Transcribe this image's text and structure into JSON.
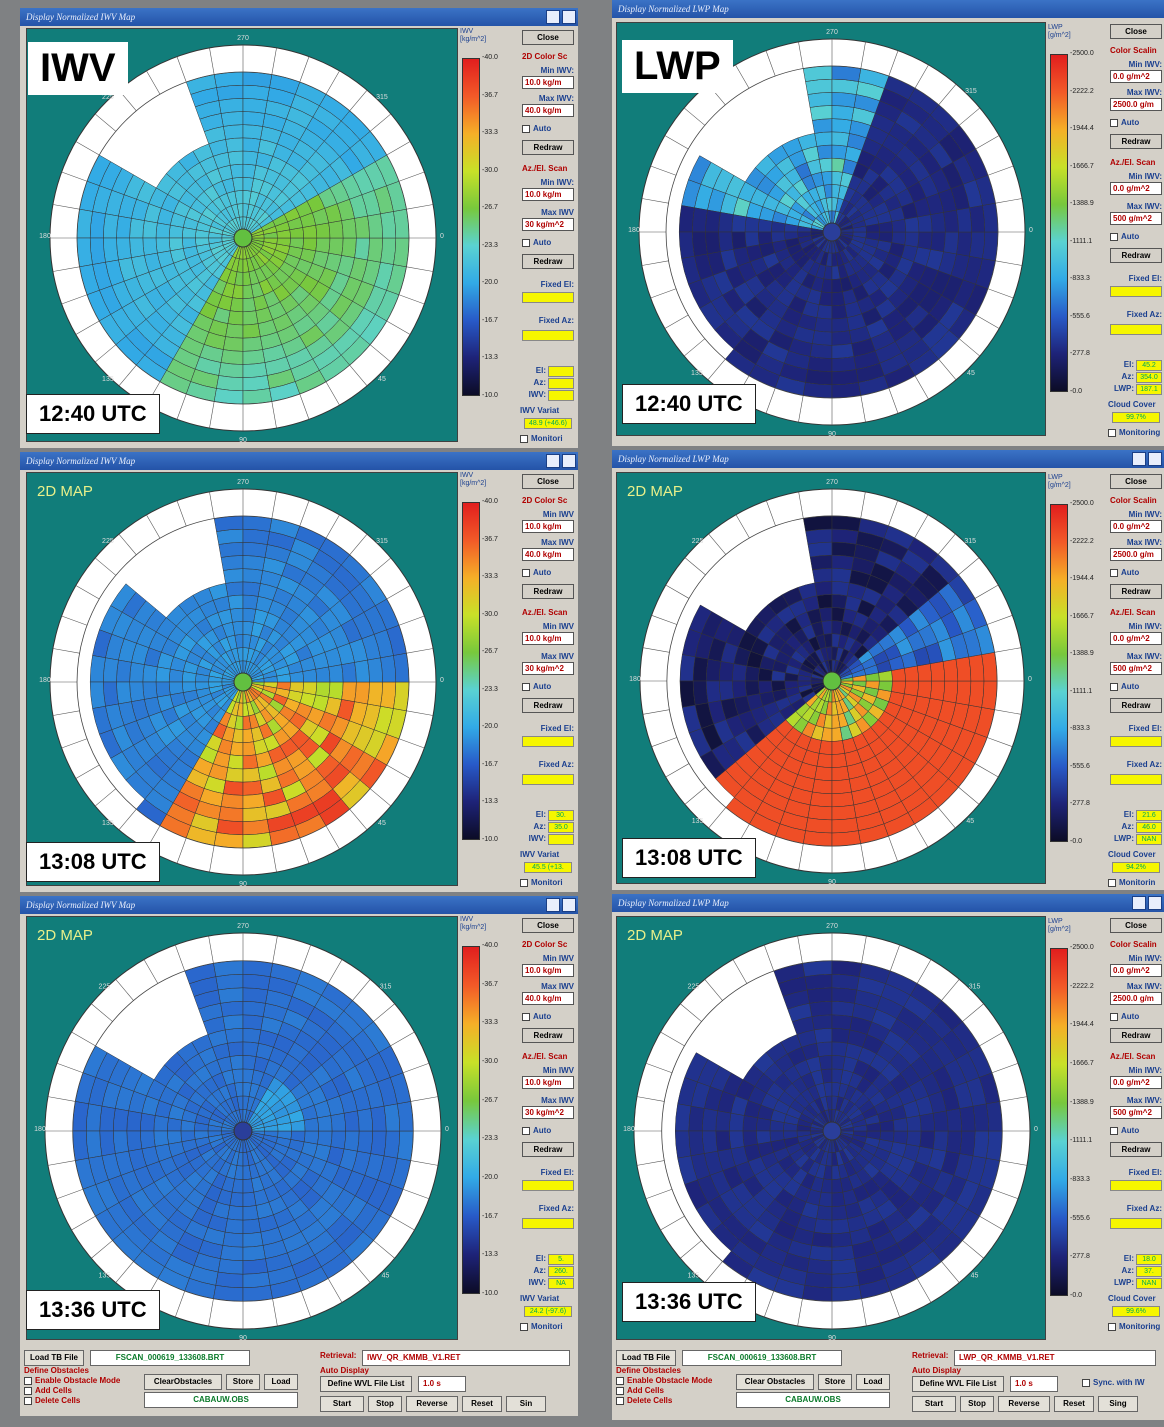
{
  "panels": [
    {
      "title": "Display Normalized IWV Map",
      "heading": "",
      "time": "12:40 UTC",
      "corner": "IWV",
      "scale": {
        "unit": "IWV [kg/m^2]",
        "ticks": [
          "40.0",
          "36.7",
          "33.3",
          "30.0",
          "26.7",
          "23.3",
          "20.0",
          "16.7",
          "13.3",
          "10.0"
        ]
      },
      "side": {
        "close": "Close",
        "color_scaling": "2D Color Sc",
        "min_label": "Min IWV:",
        "min_val": "10.0 kg/m",
        "max_label": "Max IWV:",
        "max_val": "40.0 kg/m",
        "auto": "Auto",
        "redraw": "Redraw",
        "azel": "Az./El. Scan",
        "min2_label": "Min IWV:",
        "min2_val": "10.0 kg/m",
        "max2_label": "Max IWV",
        "max2_val": "30 kg/m^2",
        "auto2": "Auto",
        "redraw2": "Redraw",
        "fixed_el": "Fixed El:",
        "fixed_az": "Fixed Az:",
        "el": "El:",
        "az": "Az:",
        "qty": "IWV:",
        "el_val": "",
        "az_val": "",
        "qty_val": "",
        "var_label": "IWV Variat",
        "var_val": "48.9 (+46.6)",
        "monitor": "Monitori"
      }
    },
    {
      "title": "Display Normalized LWP Map",
      "heading": "",
      "time": "12:40 UTC",
      "corner": "LWP",
      "scale": {
        "unit": "LWP [g/m^2]",
        "ticks": [
          "2500.0",
          "2222.2",
          "1944.4",
          "1666.7",
          "1388.9",
          "1111.1",
          "833.3",
          "555.6",
          "277.8",
          "0.0"
        ]
      },
      "side": {
        "close": "Close",
        "color_scaling": "Color Scalin",
        "min_label": "Min IWV:",
        "min_val": "0.0 g/m^2",
        "max_label": "Max IWV:",
        "max_val": "2500.0 g/m",
        "auto": "Auto",
        "redraw": "Redraw",
        "azel": "Az./El. Scan",
        "min2_label": "Min IWV:",
        "min2_val": "0.0 g/m^2",
        "max2_label": "Max IWV:",
        "max2_val": "500 g/m^2",
        "auto2": "Auto",
        "redraw2": "Redraw",
        "fixed_el": "Fixed El:",
        "fixed_az": "Fixed Az:",
        "el": "El:",
        "az": "Az:",
        "qty": "LWP:",
        "el_val": "45.2",
        "az_val": "354.0",
        "qty_val": "187.1",
        "var_label": "Cloud Cover",
        "var_val": "99.7%",
        "monitor": "Monitoring"
      }
    },
    {
      "title": "Display Normalized IWV Map",
      "heading": "2D MAP",
      "time": "13:08 UTC",
      "corner": "",
      "scale": {
        "unit": "IWV [kg/m^2]",
        "ticks": [
          "40.0",
          "36.7",
          "33.3",
          "30.0",
          "26.7",
          "23.3",
          "20.0",
          "16.7",
          "13.3",
          "10.0"
        ]
      },
      "side": {
        "close": "Close",
        "color_scaling": "2D Color Sc",
        "min_label": "Min IWV",
        "min_val": "10.0 kg/m",
        "max_label": "Max IWV",
        "max_val": "40.0 kg/m",
        "auto": "Auto",
        "redraw": "Redraw",
        "azel": "Az./El. Scan",
        "min2_label": "Min IWV",
        "min2_val": "10.0 kg/m",
        "max2_label": "Max IWV",
        "max2_val": "30 kg/m^2",
        "auto2": "Auto",
        "redraw2": "Redraw",
        "fixed_el": "Fixed El:",
        "fixed_az": "Fixed Az:",
        "el": "El:",
        "az": "Az:",
        "qty": "IWV:",
        "el_val": "30.",
        "az_val": "35.0",
        "qty_val": "",
        "var_label": "IWV Variat",
        "var_val": "45.5 (+13.",
        "monitor": "Monitori"
      }
    },
    {
      "title": "Display Normalized LWP Map",
      "heading": "2D MAP",
      "time": "13:08 UTC",
      "corner": "",
      "scale": {
        "unit": "LWP [g/m^2]",
        "ticks": [
          "2500.0",
          "2222.2",
          "1944.4",
          "1666.7",
          "1388.9",
          "1111.1",
          "833.3",
          "555.6",
          "277.8",
          "0.0"
        ]
      },
      "side": {
        "close": "Close",
        "color_scaling": "Color Scalin",
        "min_label": "Min IWV:",
        "min_val": "0.0 g/m^2",
        "max_label": "Max IWV:",
        "max_val": "2500.0 g/m",
        "auto": "Auto",
        "redraw": "Redraw",
        "azel": "Az./El. Scan",
        "min2_label": "Min IWV:",
        "min2_val": "0.0 g/m^2",
        "max2_label": "Max IWV:",
        "max2_val": "500 g/m^2",
        "auto2": "Auto",
        "redraw2": "Redraw",
        "fixed_el": "Fixed El:",
        "fixed_az": "Fixed Az:",
        "el": "El:",
        "az": "Az:",
        "qty": "LWP:",
        "el_val": "21.6",
        "az_val": "46.0",
        "qty_val": "NAN",
        "var_label": "Cloud Cover",
        "var_val": "94.2%",
        "monitor": "Monitorin"
      }
    },
    {
      "title": "Display Normalized IWV Map",
      "heading": "2D MAP",
      "time": "13:36 UTC",
      "corner": "",
      "scale": {
        "unit": "IWV [kg/m^2]",
        "ticks": [
          "40.0",
          "36.7",
          "33.3",
          "30.0",
          "26.7",
          "23.3",
          "20.0",
          "16.7",
          "13.3",
          "10.0"
        ]
      },
      "side": {
        "close": "Close",
        "color_scaling": "2D Color Sc",
        "min_label": "Min IWV",
        "min_val": "10.0 kg/m",
        "max_label": "Max IWV",
        "max_val": "40.0 kg/m",
        "auto": "Auto",
        "redraw": "Redraw",
        "azel": "Az./El. Scan",
        "min2_label": "Min IWV",
        "min2_val": "10.0 kg/m",
        "max2_label": "Max IWV",
        "max2_val": "30 kg/m^2",
        "auto2": "Auto",
        "redraw2": "Redraw",
        "fixed_el": "Fixed El:",
        "fixed_az": "Fixed Az:",
        "el": "El:",
        "az": "Az:",
        "qty": "IWV:",
        "el_val": "5.",
        "az_val": "260.",
        "qty_val": "NA",
        "var_label": "IWV Variat",
        "var_val": "24.2 (-97.6)",
        "monitor": "Monitori"
      }
    },
    {
      "title": "Display Normalized LWP Map",
      "heading": "2D MAP",
      "time": "13:36 UTC",
      "corner": "",
      "scale": {
        "unit": "LWP [g/m^2]",
        "ticks": [
          "2500.0",
          "2222.2",
          "1944.4",
          "1666.7",
          "1388.9",
          "1111.1",
          "833.3",
          "555.6",
          "277.8",
          "0.0"
        ]
      },
      "side": {
        "close": "Close",
        "color_scaling": "Color Scalin",
        "min_label": "Min IWV:",
        "min_val": "0.0 g/m^2",
        "max_label": "Max IWV:",
        "max_val": "2500.0 g/m",
        "auto": "Auto",
        "redraw": "Redraw",
        "azel": "Az./El. Scan",
        "min2_label": "Min IWV:",
        "min2_val": "0.0 g/m^2",
        "max2_label": "Max IWV:",
        "max2_val": "500 g/m^2",
        "auto2": "Auto",
        "redraw2": "Redraw",
        "fixed_el": "Fixed El:",
        "fixed_az": "Fixed Az:",
        "el": "El:",
        "az": "Az:",
        "qty": "LWP:",
        "el_val": "18.0",
        "az_val": "37.",
        "qty_val": "NAN",
        "var_label": "Cloud Cover",
        "var_val": "99.6%",
        "monitor": "Monitoring"
      }
    }
  ],
  "compass": [
    "270",
    "225",
    "315",
    "180",
    "0",
    "135",
    "45",
    "90"
  ],
  "bottom": [
    {
      "load_tb": "Load TB File",
      "tb_file": "FSCAN_000619_133608.BRT",
      "retrieval_label": "Retrieval:",
      "retrieval": "IWV_QR_KMMB_V1.RET",
      "define_obstacles": "Define Obstacles",
      "enable": "Enable Obstacle Mode",
      "add": "Add Cells",
      "delete": "Delete Cells",
      "clear": "ClearObstacles",
      "store": "Store",
      "load": "Load",
      "obs_file": "CABAUW.OBS",
      "auto_display": "Auto Display",
      "define_wvl": "Define WVL File List",
      "interval": "1.0 s",
      "start": "Start",
      "stop": "Stop",
      "reverse": "Reverse",
      "reset": "Reset",
      "single": "Sin",
      "sync": ""
    },
    {
      "load_tb": "Load TB File",
      "tb_file": "FSCAN_000619_133608.BRT",
      "retrieval_label": "Retrieval:",
      "retrieval": "LWP_QR_KMMB_V1.RET",
      "define_obstacles": "Define Obstacles",
      "enable": "Enable Obstacle Mode",
      "add": "Add Cells",
      "delete": "Delete Cells",
      "clear": "Clear Obstacles",
      "store": "Store",
      "load": "Load",
      "obs_file": "CABAUW.OBS",
      "auto_display": "Auto Display",
      "define_wvl": "Define WVL File List",
      "interval": "1.0 s",
      "start": "Start",
      "stop": "Stop",
      "reverse": "Reverse",
      "reset": "Reset",
      "single": "Sing",
      "sync": "Sync. with IW"
    }
  ],
  "colors": {
    "teal": "#117d7a",
    "window": "#d4d0c8",
    "title": "#2a5db0"
  }
}
